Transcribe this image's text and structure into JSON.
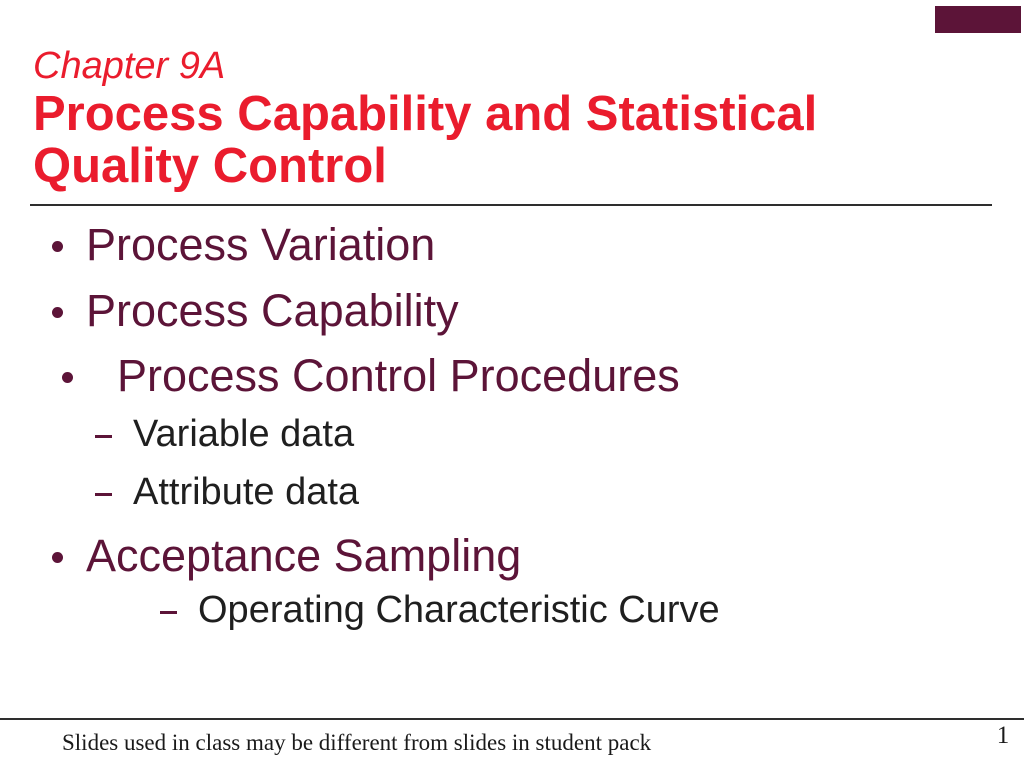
{
  "slide": {
    "kicker": "Chapter 9A",
    "title": "Process Capability and Statistical Quality Control",
    "bullets": [
      {
        "level": 1,
        "text": "Process Variation"
      },
      {
        "level": 1,
        "text": "Process Capability"
      },
      {
        "level": 1,
        "text": "Process Control Procedures"
      },
      {
        "level": 2,
        "text": "Variable data"
      },
      {
        "level": 2,
        "text": "Attribute data"
      },
      {
        "level": 1,
        "text": "Acceptance Sampling"
      },
      {
        "level": 2,
        "text": "Operating Characteristic Curve"
      }
    ],
    "footer_note": "Slides used in class may be different from slides in student pack",
    "page_number": "1",
    "colors": {
      "title_red": "#ea1c2d",
      "bullet_maroon": "#5c1438",
      "body_black": "#1f1f1f",
      "rule_dark": "#2e2e2e"
    }
  }
}
